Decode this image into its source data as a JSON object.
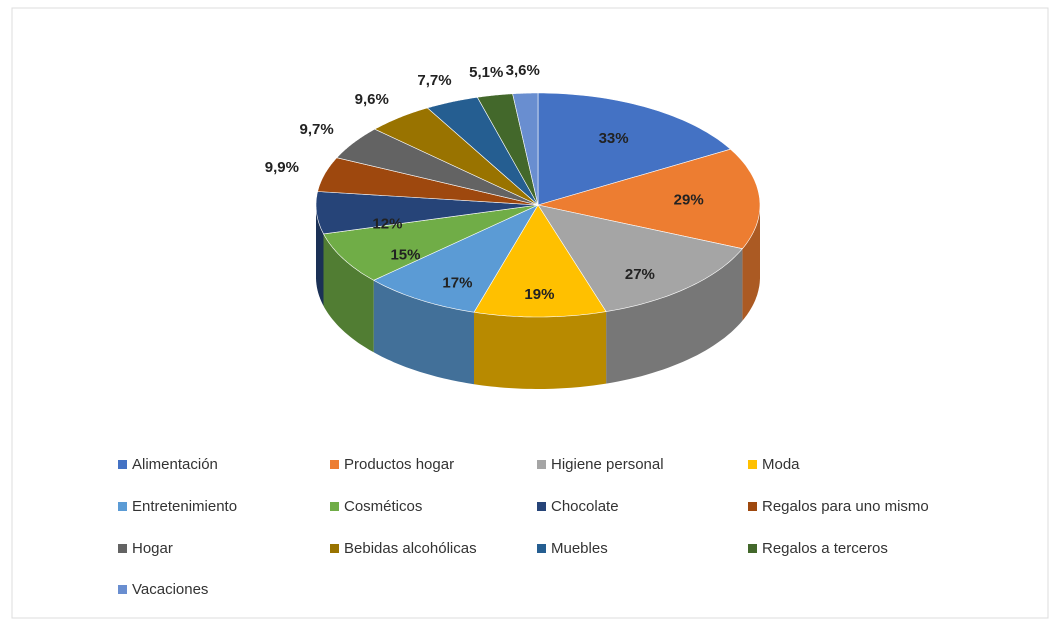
{
  "chart_data": {
    "type": "pie3d",
    "categories": [
      "Alimentación",
      "Productos hogar",
      "Higiene personal",
      "Moda",
      "Entretenimiento",
      "Cosméticos",
      "Chocolate",
      "Regalos para uno mismo",
      "Hogar",
      "Bebidas alcohólicas",
      "Muebles",
      "Regalos a terceros",
      "Vacaciones"
    ],
    "values": [
      33,
      29,
      27,
      19,
      17,
      15,
      12,
      9.9,
      9.7,
      9.6,
      7.7,
      5.1,
      3.6
    ],
    "value_labels": [
      "33%",
      "29%",
      "27%",
      "19%",
      "17%",
      "15%",
      "12%",
      "9,9%",
      "9,7%",
      "9,6%",
      "7,7%",
      "5,1%",
      "3,6%"
    ],
    "colors": [
      "#4472c4",
      "#ed7d31",
      "#a5a5a5",
      "#ffc000",
      "#5b9bd5",
      "#70ad47",
      "#264478",
      "#9e480e",
      "#636363",
      "#997300",
      "#255e91",
      "#43682b",
      "#698ed0"
    ],
    "legend": "bottom"
  }
}
